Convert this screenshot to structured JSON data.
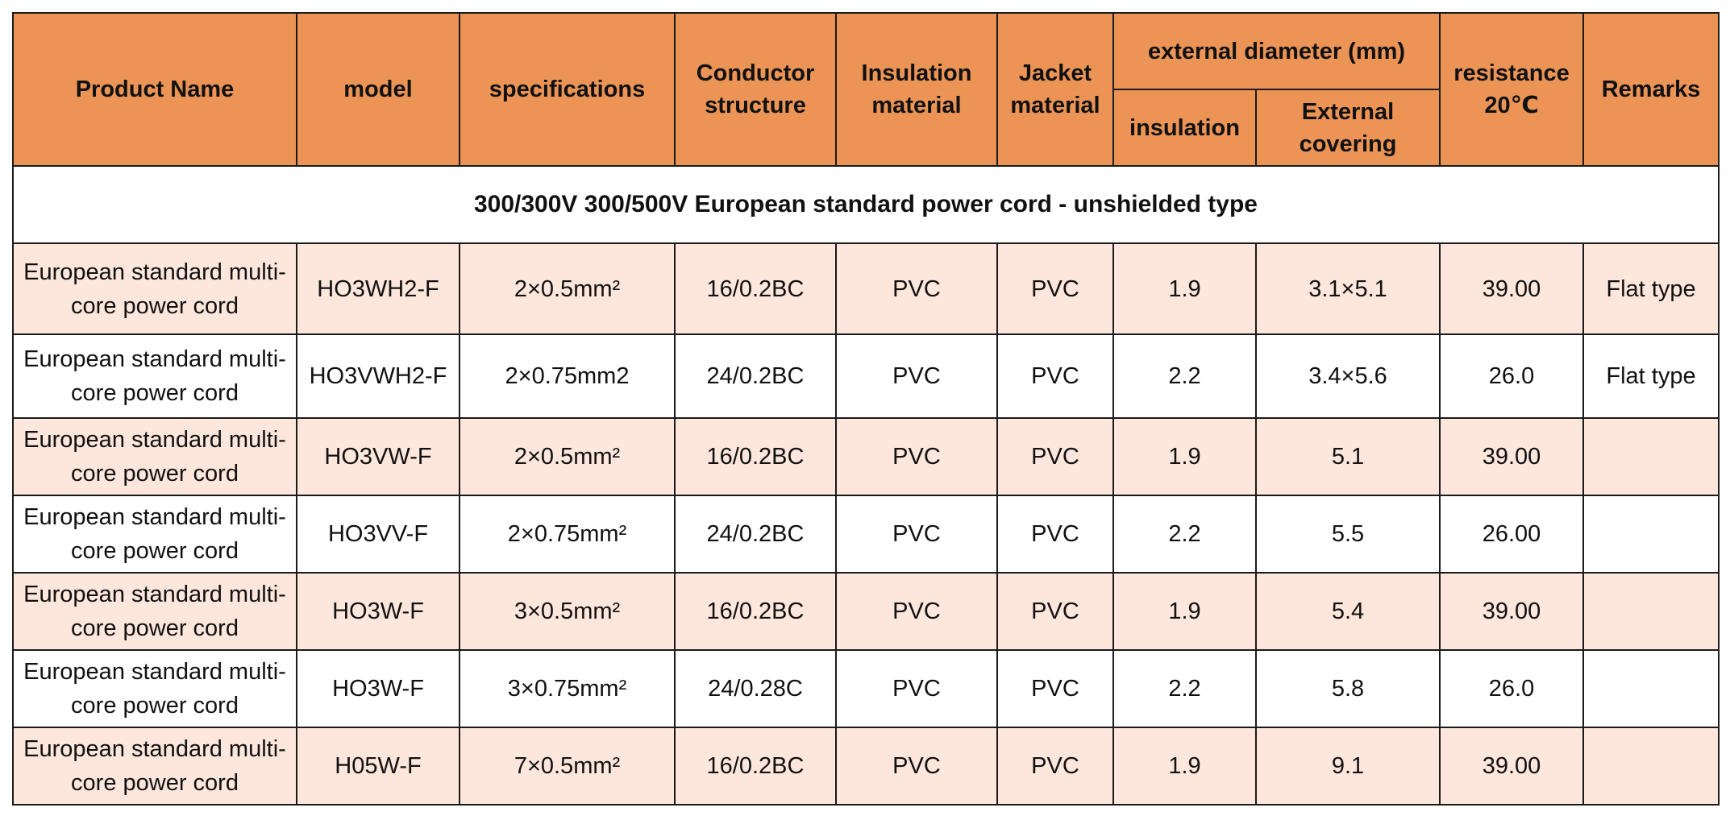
{
  "headers": {
    "product_name": "Product Name",
    "model": "model",
    "specifications": "specifications",
    "conductor_structure": "Conductor structure",
    "insulation_material": "Insulation material",
    "jacket_material": "Jacket material",
    "external_diameter": "external diameter (mm)",
    "insulation": "insulation",
    "external_covering": "External covering",
    "resistance": "resistance 20℃",
    "remarks": "Remarks"
  },
  "section_title": "300/300V 300/500V European standard power cord - unshielded type",
  "rows": [
    {
      "product_name": "European standard multi-core power cord",
      "model": "HO3WH2-F",
      "specifications": "2×0.5mm²",
      "conductor_structure": "16/0.2BC",
      "insulation_material": "PVC",
      "jacket_material": "PVC",
      "insulation": "1.9",
      "external_covering": "3.1×5.1",
      "resistance": "39.00",
      "remarks": "Flat type"
    },
    {
      "product_name": "European standard multi-core power cord",
      "model": "HO3VWH2-F",
      "specifications": "2×0.75mm2",
      "conductor_structure": "24/0.2BC",
      "insulation_material": "PVC",
      "jacket_material": "PVC",
      "insulation": "2.2",
      "external_covering": "3.4×5.6",
      "resistance": "26.0",
      "remarks": "Flat type"
    },
    {
      "product_name": "European standard multi-core power cord",
      "model": "HO3VW-F",
      "specifications": "2×0.5mm²",
      "conductor_structure": "16/0.2BC",
      "insulation_material": "PVC",
      "jacket_material": "PVC",
      "insulation": "1.9",
      "external_covering": "5.1",
      "resistance": "39.00",
      "remarks": ""
    },
    {
      "product_name": "European standard multi-core power cord",
      "model": "HO3VV-F",
      "specifications": "2×0.75mm²",
      "conductor_structure": "24/0.2BC",
      "insulation_material": "PVC",
      "jacket_material": "PVC",
      "insulation": "2.2",
      "external_covering": "5.5",
      "resistance": "26.00",
      "remarks": ""
    },
    {
      "product_name": "European standard multi-core power cord",
      "model": "HO3W-F",
      "specifications": "3×0.5mm²",
      "conductor_structure": "16/0.2BC",
      "insulation_material": "PVC",
      "jacket_material": "PVC",
      "insulation": "1.9",
      "external_covering": "5.4",
      "resistance": "39.00",
      "remarks": ""
    },
    {
      "product_name": "European standard multi-core power cord",
      "model": "HO3W-F",
      "specifications": "3×0.75mm²",
      "conductor_structure": "24/0.28C",
      "insulation_material": "PVC",
      "jacket_material": "PVC",
      "insulation": "2.2",
      "external_covering": "5.8",
      "resistance": "26.0",
      "remarks": ""
    },
    {
      "product_name": "European standard multi-core power cord",
      "model": "H05W-F",
      "specifications": "7×0.5mm²",
      "conductor_structure": "16/0.2BC",
      "insulation_material": "PVC",
      "jacket_material": "PVC",
      "insulation": "1.9",
      "external_covering": "9.1",
      "resistance": "39.00",
      "remarks": ""
    }
  ],
  "colors": {
    "header_bg": "#eb9456",
    "odd_row_bg": "#fde6dc",
    "even_row_bg": "#ffffff",
    "border": "#1a1a1a"
  }
}
